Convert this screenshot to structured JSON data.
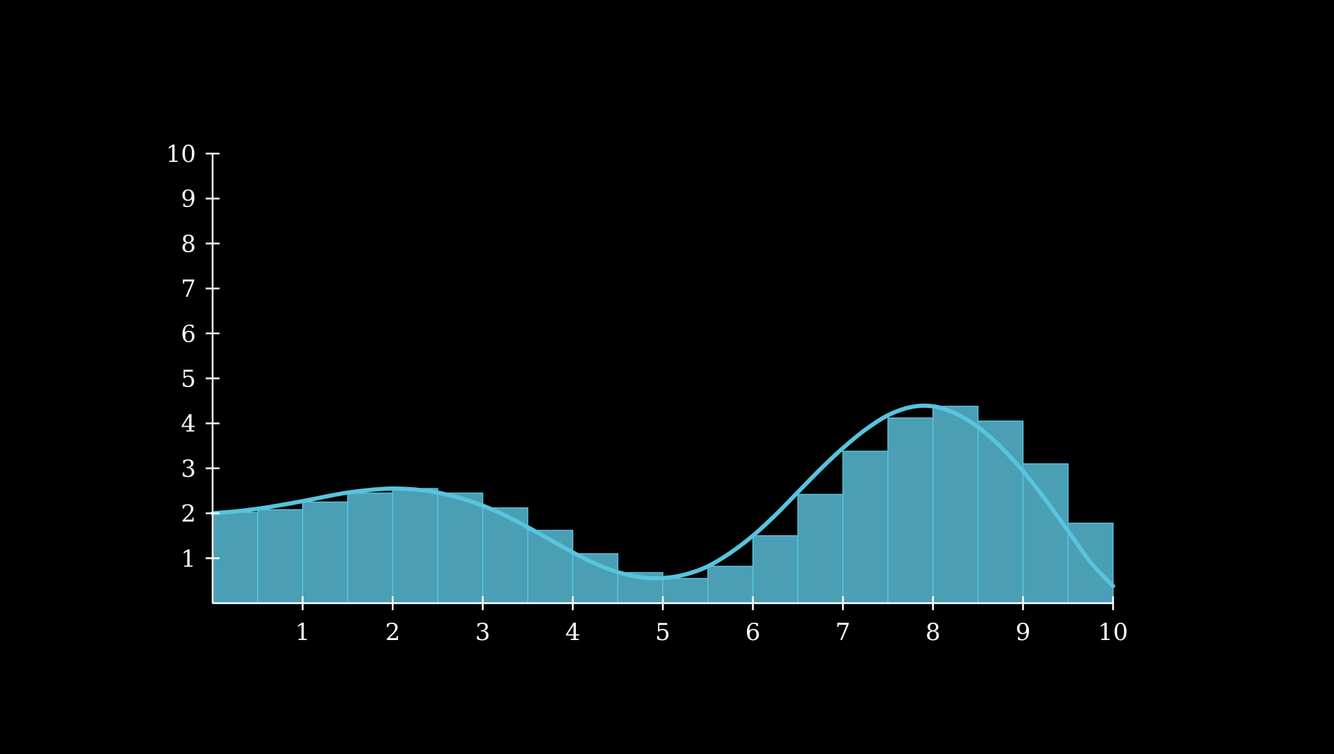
{
  "colors": {
    "background": "#000000",
    "axis": "#ffffff",
    "bar_fill": "#4a9fb5",
    "bar_edge": "#58c4dd",
    "curve": "#58c4dd"
  },
  "chart_data": {
    "type": "bar",
    "subtype": "riemann-histogram-with-curve",
    "title": "",
    "xlabel": "",
    "ylabel": "",
    "xlim": [
      0,
      10
    ],
    "ylim": [
      0,
      10
    ],
    "grid": false,
    "x_ticks": [
      1,
      2,
      3,
      4,
      5,
      6,
      7,
      8,
      9,
      10
    ],
    "y_ticks": [
      1,
      2,
      3,
      4,
      5,
      6,
      7,
      8,
      9,
      10
    ],
    "bins": {
      "start": 0,
      "width": 0.5,
      "values": [
        2.02,
        2.08,
        2.25,
        2.45,
        2.55,
        2.45,
        2.12,
        1.62,
        1.1,
        0.68,
        0.55,
        0.82,
        1.5,
        2.42,
        3.38,
        4.12,
        4.38,
        4.05,
        3.1,
        1.78
      ]
    },
    "curve": {
      "x": [
        0,
        0.25,
        0.5,
        0.75,
        1,
        1.25,
        1.5,
        1.75,
        2,
        2.25,
        2.5,
        2.75,
        3,
        3.25,
        3.5,
        3.75,
        4,
        4.25,
        4.5,
        4.75,
        5,
        5.25,
        5.5,
        5.75,
        6,
        6.25,
        6.5,
        6.75,
        7,
        7.25,
        7.5,
        7.75,
        8,
        8.25,
        8.5,
        8.75,
        9,
        9.25,
        9.5,
        9.75,
        10
      ],
      "y": [
        2.0,
        2.04,
        2.1,
        2.18,
        2.27,
        2.37,
        2.46,
        2.52,
        2.55,
        2.53,
        2.46,
        2.34,
        2.17,
        1.95,
        1.69,
        1.41,
        1.13,
        0.88,
        0.69,
        0.58,
        0.56,
        0.64,
        0.82,
        1.12,
        1.5,
        1.96,
        2.47,
        2.98,
        3.45,
        3.86,
        4.18,
        4.36,
        4.38,
        4.22,
        3.92,
        3.48,
        2.94,
        2.3,
        1.61,
        0.91,
        0.38
      ]
    }
  }
}
